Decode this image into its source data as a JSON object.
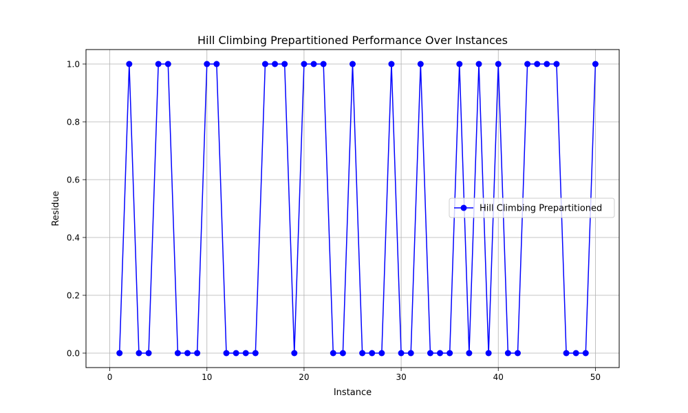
{
  "chart_data": {
    "type": "line",
    "title": "Hill Climbing Prepartitioned Performance Over Instances",
    "xlabel": "Instance",
    "ylabel": "Residue",
    "xlim": [
      -2.45,
      52.45
    ],
    "ylim": [
      -0.05,
      1.05
    ],
    "xticks": [
      0,
      10,
      20,
      30,
      40,
      50
    ],
    "yticks": [
      0.0,
      0.2,
      0.4,
      0.6,
      0.8,
      1.0
    ],
    "xtick_labels": [
      "0",
      "10",
      "20",
      "30",
      "40",
      "50"
    ],
    "ytick_labels": [
      "0.0",
      "0.2",
      "0.4",
      "0.6",
      "0.8",
      "1.0"
    ],
    "grid": true,
    "legend_position": "center-right",
    "x": [
      1,
      2,
      3,
      4,
      5,
      6,
      7,
      8,
      9,
      10,
      11,
      12,
      13,
      14,
      15,
      16,
      17,
      18,
      19,
      20,
      21,
      22,
      23,
      24,
      25,
      26,
      27,
      28,
      29,
      30,
      31,
      32,
      33,
      34,
      35,
      36,
      37,
      38,
      39,
      40,
      41,
      42,
      43,
      44,
      45,
      46,
      47,
      48,
      49,
      50
    ],
    "series": [
      {
        "name": "Hill Climbing Prepartitioned",
        "color": "#0000ff",
        "marker": "circle",
        "values": [
          0,
          1,
          0,
          0,
          1,
          1,
          0,
          0,
          0,
          1,
          1,
          0,
          0,
          0,
          0,
          1,
          1,
          1,
          0,
          1,
          1,
          1,
          0,
          0,
          1,
          0,
          0,
          0,
          1,
          0,
          0,
          1,
          0,
          0,
          0,
          1,
          0,
          1,
          0,
          1,
          0,
          0,
          1,
          1,
          1,
          1,
          0,
          0,
          0,
          1
        ]
      }
    ]
  }
}
